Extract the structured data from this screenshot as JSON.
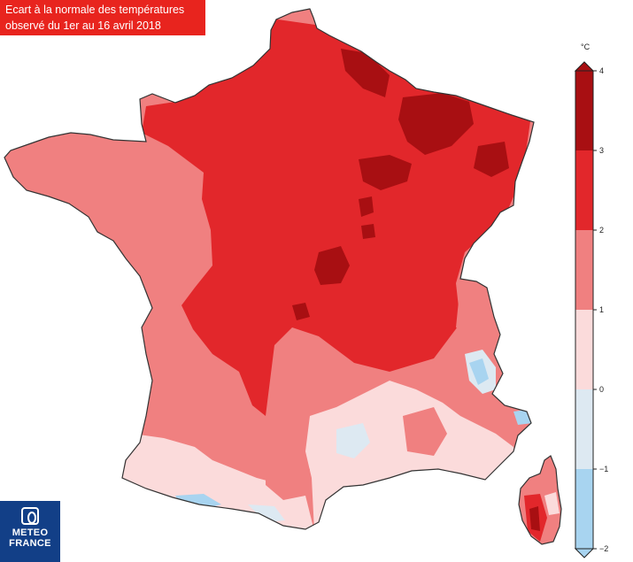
{
  "title": {
    "line1": "Ecart à la normale des températures",
    "line2": "observé du 1er au 16 avril 2018"
  },
  "legend": {
    "unit": "°C",
    "ticks": [
      "4",
      "3",
      "2",
      "1",
      "0",
      "−1",
      "−2"
    ],
    "bins": [
      {
        "range": "3 – 4",
        "color": "#a80f12"
      },
      {
        "range": "2 – 3",
        "color": "#e2272b"
      },
      {
        "range": "1 – 2",
        "color": "#f08080"
      },
      {
        "range": "0 – 1",
        "color": "#fbdbdb"
      },
      {
        "range": "−1 – 0",
        "color": "#dde9f2"
      },
      {
        "range": "−2 – −1",
        "color": "#a8d4f0"
      }
    ]
  },
  "logo": {
    "line1": "METEO",
    "line2": "FRANCE"
  },
  "colors": {
    "title_background": "#e8241e",
    "logo_background": "#123f87",
    "map_border": "#333333"
  }
}
